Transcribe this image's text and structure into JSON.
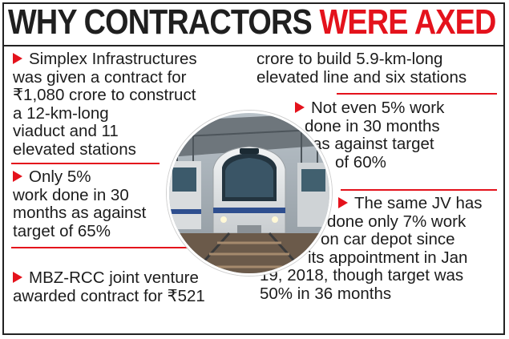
{
  "title": {
    "part1": "WHY CONTRACTORS",
    "part2": "WERE AXED"
  },
  "colors": {
    "accent": "#e4121c",
    "text": "#1c1c1c"
  },
  "points": [
    {
      "lines": [
        "Simplex Infrastructures",
        "was given a contract for",
        "₹1,080 crore to construct",
        "a 12-km-long",
        "viaduct and 11",
        "elevated stations"
      ]
    },
    {
      "lines": [
        "Only 5%",
        "work done in 30",
        "months as against",
        "target of 65%"
      ]
    },
    {
      "lines": [
        "MBZ-RCC joint venture",
        "awarded contract for ₹521",
        "crore to build 5.9-km-long",
        "elevated line and six stations"
      ]
    },
    {
      "lines": [
        "Not even 5% work",
        "done in 30 months",
        "as against target",
        "of 60%"
      ]
    },
    {
      "lines": [
        "The same JV has",
        "done only 7% work",
        "on car depot since",
        "its appointment in Jan",
        "19, 2018, though target was",
        "50% in 36 months"
      ]
    }
  ],
  "photo_icon": "metro-train-photo"
}
